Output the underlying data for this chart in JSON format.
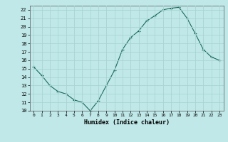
{
  "x": [
    0,
    1,
    2,
    3,
    4,
    5,
    6,
    7,
    8,
    9,
    10,
    11,
    12,
    13,
    14,
    15,
    16,
    17,
    18,
    19,
    20,
    21,
    22,
    23
  ],
  "y": [
    15.2,
    14.2,
    13.0,
    12.3,
    12.0,
    11.3,
    11.0,
    10.0,
    11.2,
    13.0,
    14.8,
    17.3,
    18.7,
    19.5,
    20.7,
    21.3,
    22.0,
    22.2,
    22.3,
    21.0,
    19.2,
    17.3,
    16.4,
    16.0
  ],
  "xlabel": "Humidex (Indice chaleur)",
  "xlim": [
    -0.5,
    23.5
  ],
  "ylim": [
    10,
    22.5
  ],
  "yticks": [
    10,
    11,
    12,
    13,
    14,
    15,
    16,
    17,
    18,
    19,
    20,
    21,
    22
  ],
  "xticks": [
    0,
    1,
    2,
    3,
    4,
    5,
    6,
    7,
    8,
    9,
    10,
    11,
    12,
    13,
    14,
    15,
    16,
    17,
    18,
    19,
    20,
    21,
    22,
    23
  ],
  "xtick_labels": [
    "0",
    "1",
    "2",
    "3",
    "4",
    "5",
    "6",
    "7",
    "8",
    "9",
    "10",
    "11",
    "12",
    "13",
    "14",
    "15",
    "16",
    "17",
    "18",
    "19",
    "20",
    "21",
    "22",
    "23"
  ],
  "line_color": "#1a6b5a",
  "marker": "+",
  "bg_color": "#c0e8e8",
  "grid_color": "#aad4d4"
}
